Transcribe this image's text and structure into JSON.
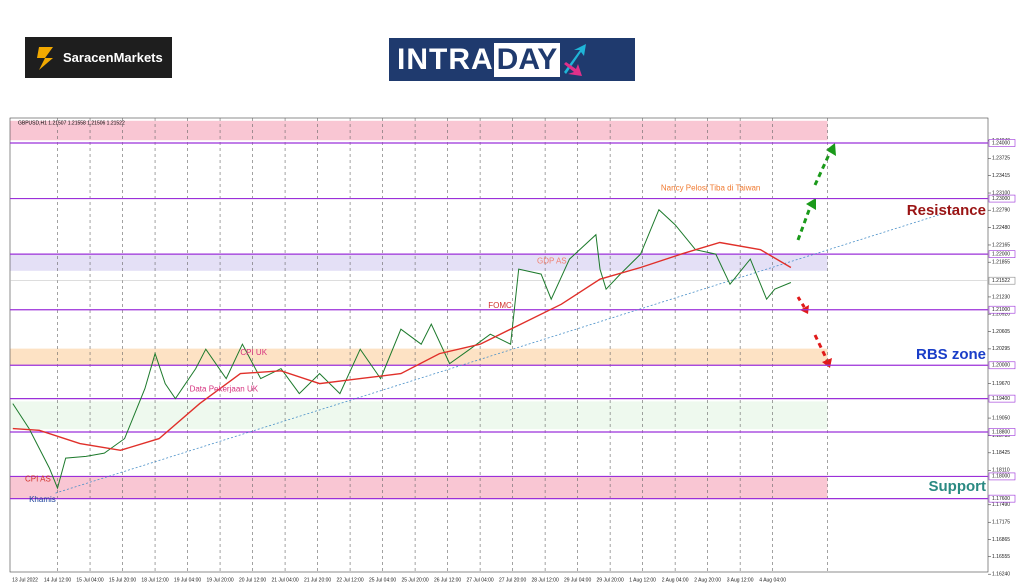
{
  "header": {
    "brand": "SaracenMarkets",
    "intra": "INTRA",
    "day": "DAY"
  },
  "chart_data": {
    "type": "line",
    "title": "GBPUSD,H1  1.21507 1.21558 1.21506 1.21522",
    "xlim": [
      -7.4,
      474
    ],
    "ylim": [
      1.1628,
      1.2445
    ],
    "xticks": [
      {
        "value": 0,
        "label": "13 Jul 2022"
      },
      {
        "value": 16,
        "label": "14 Jul 12:00"
      },
      {
        "value": 32,
        "label": "15 Jul 04:00"
      },
      {
        "value": 48,
        "label": "15 Jul 20:00"
      },
      {
        "value": 64,
        "label": "18 Jul 12:00"
      },
      {
        "value": 80,
        "label": "19 Jul 04:00"
      },
      {
        "value": 96,
        "label": "19 Jul 20:00"
      },
      {
        "value": 112,
        "label": "20 Jul 12:00"
      },
      {
        "value": 128,
        "label": "21 Jul 04:00"
      },
      {
        "value": 144,
        "label": "21 Jul 20:00"
      },
      {
        "value": 160,
        "label": "22 Jul 12:00"
      },
      {
        "value": 176,
        "label": "25 Jul 04:00"
      },
      {
        "value": 192,
        "label": "25 Jul 20:00"
      },
      {
        "value": 208,
        "label": "26 Jul 12:00"
      },
      {
        "value": 224,
        "label": "27 Jul 04:00"
      },
      {
        "value": 240,
        "label": "27 Jul 20:00"
      },
      {
        "value": 256,
        "label": "28 Jul 12:00"
      },
      {
        "value": 272,
        "label": "29 Jul 04:00"
      },
      {
        "value": 288,
        "label": "29 Jul 20:00"
      },
      {
        "value": 304,
        "label": "1 Aug 12:00"
      },
      {
        "value": 320,
        "label": "2 Aug 04:00"
      },
      {
        "value": 336,
        "label": "2 Aug 20:00"
      },
      {
        "value": 352,
        "label": "3 Aug 12:00"
      },
      {
        "value": 368,
        "label": "4 Aug 04:00"
      }
    ],
    "yticks": [
      {
        "value": 1.2404,
        "label": "1.24040"
      },
      {
        "value": 1.23725,
        "label": "1.23725"
      },
      {
        "value": 1.23415,
        "label": "1.23415"
      },
      {
        "value": 1.231,
        "label": "1.23100"
      },
      {
        "value": 1.2279,
        "label": "1.22790"
      },
      {
        "value": 1.2248,
        "label": "1.22480"
      },
      {
        "value": 1.22165,
        "label": "1.22165"
      },
      {
        "value": 1.21855,
        "label": "1.21855"
      },
      {
        "value": 1.2123,
        "label": "1.21230"
      },
      {
        "value": 1.2092,
        "label": "1.20920"
      },
      {
        "value": 1.20605,
        "label": "1.20605"
      },
      {
        "value": 1.20295,
        "label": "1.20295"
      },
      {
        "value": 1.1967,
        "label": "1.19670"
      },
      {
        "value": 1.1905,
        "label": "1.19050"
      },
      {
        "value": 1.18735,
        "label": "1.18735"
      },
      {
        "value": 1.18425,
        "label": "1.18425"
      },
      {
        "value": 1.1811,
        "label": "1.18110"
      },
      {
        "value": 1.1749,
        "label": "1.17490"
      },
      {
        "value": 1.17175,
        "label": "1.17175"
      },
      {
        "value": 1.16865,
        "label": "1.16865"
      },
      {
        "value": 1.16555,
        "label": "1.16555"
      },
      {
        "value": 1.1624,
        "label": "1.16240"
      }
    ],
    "grid": true,
    "levels": [
      {
        "value": 1.24,
        "label": "1.24000"
      },
      {
        "value": 1.23,
        "label": "1.23000"
      },
      {
        "value": 1.22,
        "label": "1.22000"
      },
      {
        "value": 1.21,
        "label": "1.21000"
      },
      {
        "value": 1.2,
        "label": "1.20000"
      },
      {
        "value": 1.194,
        "label": "1.19400"
      },
      {
        "value": 1.188,
        "label": "1.18800"
      },
      {
        "value": 1.18,
        "label": "1.18000"
      },
      {
        "value": 1.176,
        "label": "1.17600"
      }
    ],
    "level_color": "#9b30d9",
    "current": {
      "value": 1.21522,
      "label": "1.21522"
    },
    "zone_end_x": 395,
    "zones": [
      {
        "from": 1.2405,
        "to": 1.244,
        "color": "#f9c6d3"
      },
      {
        "from": 1.217,
        "to": 1.22,
        "color": "#e4e0f6"
      },
      {
        "from": 1.2,
        "to": 1.203,
        "color": "#fde2c4"
      },
      {
        "from": 1.1885,
        "to": 1.1935,
        "color": "#eef9ee"
      },
      {
        "from": 1.176,
        "to": 1.18,
        "color": "#f9c6d3"
      }
    ],
    "series": [
      {
        "color": "#1d7a2c",
        "x": [
          -6,
          2,
          12,
          16,
          20,
          30,
          39,
          49,
          59,
          64,
          69,
          74,
          84,
          89,
          99,
          107,
          116,
          126,
          135,
          145,
          155,
          165,
          175,
          185,
          195,
          200,
          209,
          219,
          229,
          239,
          243,
          254,
          259,
          268,
          281,
          283,
          286,
          293,
          303,
          312,
          320,
          330,
          340,
          347,
          357,
          365,
          369,
          377
        ],
        "values": [
          1.1931,
          1.1886,
          1.1815,
          1.1779,
          1.1833,
          1.1836,
          1.1842,
          1.1868,
          1.1958,
          1.2021,
          1.1967,
          1.194,
          1.1994,
          1.2029,
          1.1976,
          1.2038,
          1.1976,
          1.1994,
          1.1949,
          1.1985,
          1.1949,
          1.2029,
          1.1976,
          1.2065,
          1.2038,
          1.2074,
          1.2003,
          1.2029,
          1.2056,
          1.2038,
          1.2173,
          1.2164,
          1.2119,
          1.2191,
          1.2235,
          1.2173,
          1.2137,
          1.2164,
          1.22,
          1.228,
          1.2253,
          1.2208,
          1.22,
          1.2146,
          1.2191,
          1.2119,
          1.2137,
          1.2149
        ]
      },
      {
        "color": "#e0302a",
        "x": [
          -6,
          7,
          27,
          47,
          66,
          86,
          106,
          126,
          145,
          165,
          185,
          204,
          224,
          244,
          264,
          283,
          303,
          323,
          342,
          362,
          377
        ],
        "values": [
          1.1886,
          1.1883,
          1.1859,
          1.1847,
          1.1868,
          1.1931,
          1.1985,
          1.199,
          1.1967,
          1.1976,
          1.1985,
          1.2021,
          1.2038,
          1.2074,
          1.211,
          1.2155,
          1.2176,
          1.22,
          1.2221,
          1.2208,
          1.2176
        ]
      }
    ],
    "trendline": {
      "color": "#4a90c8",
      "x": [
        15,
        458
      ],
      "values": [
        1.177,
        1.228
      ]
    },
    "annotations": [
      {
        "text": "CPI AS",
        "x": 0,
        "y": 1.1795,
        "color": "#d0302a"
      },
      {
        "text": "Khamis",
        "x": 2,
        "y": 1.1758,
        "color": "#1a3e9a"
      },
      {
        "text": "CPI UK",
        "x": 106,
        "y": 1.2022,
        "color": "#d6337f"
      },
      {
        "text": "Data Pekerjaan UK",
        "x": 81,
        "y": 1.1957,
        "color": "#d6337f"
      },
      {
        "text": "FOMC",
        "x": 228,
        "y": 1.2107,
        "color": "#d0302a"
      },
      {
        "text": "GDP AS",
        "x": 252,
        "y": 1.2187,
        "color": "#f08070"
      },
      {
        "text": "Nancy Pelosi Tiba di Taiwan",
        "x": 313,
        "y": 1.2318,
        "color": "#f07a30"
      }
    ],
    "zone_labels": [
      {
        "text": "Resistance",
        "y": 1.2278,
        "color": "#9a1414"
      },
      {
        "text": "RBS zone",
        "y": 1.2018,
        "color": "#1a3ec8"
      },
      {
        "text": "Support",
        "y": 1.1781,
        "color": "#2a8a82"
      }
    ]
  }
}
